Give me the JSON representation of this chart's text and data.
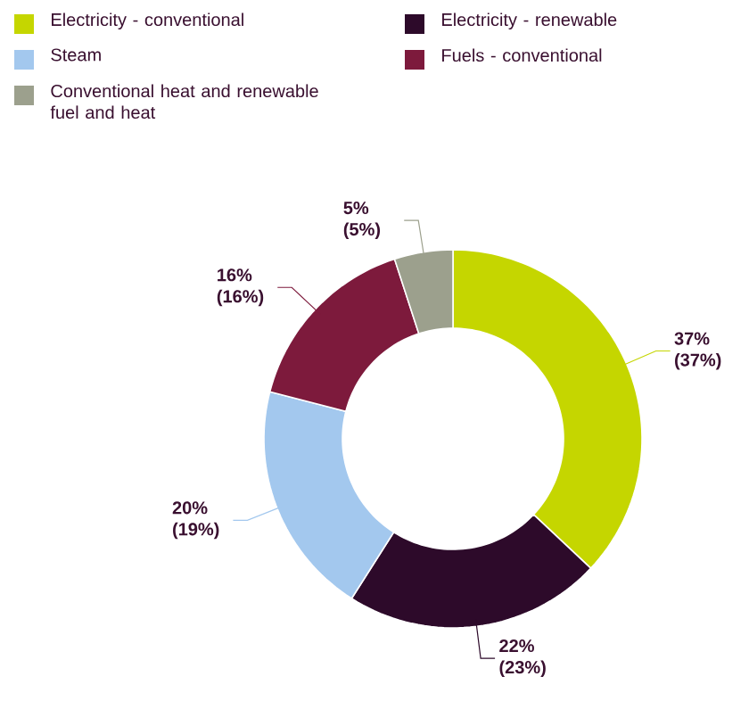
{
  "chart_data": {
    "type": "donut",
    "categories": [
      "Electricity - conventional",
      "Electricity - renewable",
      "Steam",
      "Fuels - conventional",
      "Conventional heat and renewable fuel and heat"
    ],
    "values": [
      37,
      22,
      20,
      16,
      5
    ],
    "colors": [
      "#c5d600",
      "#2d0a2a",
      "#a3c8ee",
      "#7d1a3c",
      "#9ca08d"
    ],
    "value_labels": [
      "37% (37%)",
      "22% (23%)",
      "20% (19%)",
      "16% (16%)",
      "5% (5%)"
    ],
    "legend": "top"
  }
}
